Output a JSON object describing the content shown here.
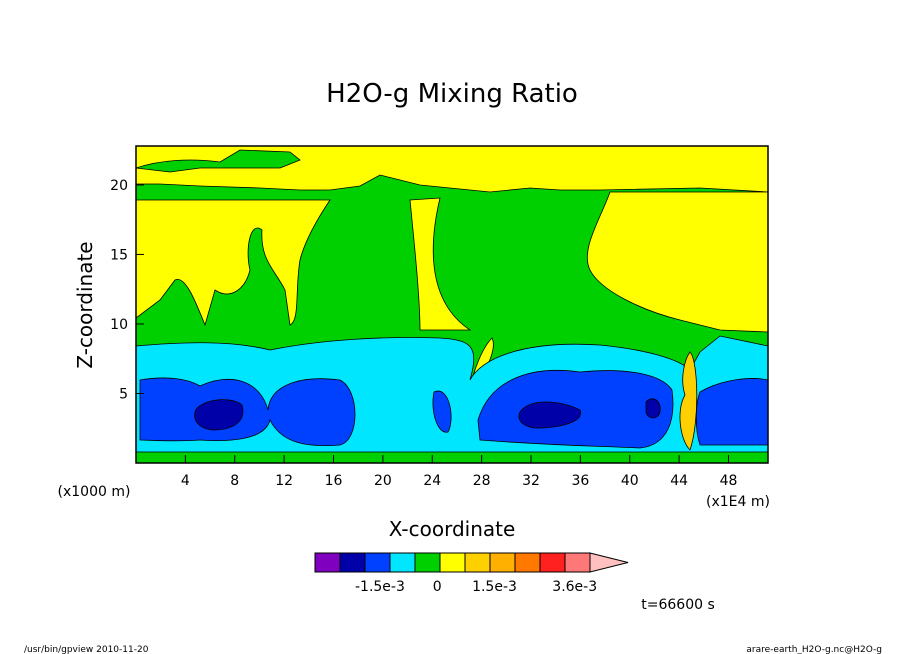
{
  "chart_data": {
    "type": "contour",
    "title": "H2O-g Mixing Ratio",
    "xlabel": "X-coordinate",
    "ylabel": "Z-coordinate",
    "x_unit_left": "(x1000 m)",
    "x_unit_right": "(x1E4 m)",
    "xlim": [
      0,
      51.2
    ],
    "ylim": [
      0,
      22.8
    ],
    "xticks": [
      4,
      8,
      12,
      16,
      20,
      24,
      28,
      32,
      36,
      40,
      44,
      48
    ],
    "yticks": [
      5,
      10,
      15,
      20
    ],
    "colorbar": {
      "colors": [
        "#8000c0",
        "#0000a8",
        "#0040ff",
        "#00e6ff",
        "#00d000",
        "#ffff00",
        "#ffd000",
        "#ffb000",
        "#ff7800",
        "#ff2020",
        "#ff7878"
      ],
      "extend_color": "#ffc0c0",
      "clim": [
        -0.0032,
        0.004
      ],
      "ticks": [
        {
          "value": -0.0015,
          "label": "-1.5e-3"
        },
        0,
        {
          "value": 0.0015,
          "label": "1.5e-3"
        },
        {
          "value": 0.0036,
          "label": "3.6e-3"
        }
      ]
    },
    "annotation": "t=66600 s",
    "footer_left": "/usr/bin/gpview  2010-11-20",
    "footer_right": "arare-earth_H2O-g.nc@H2O-g"
  }
}
